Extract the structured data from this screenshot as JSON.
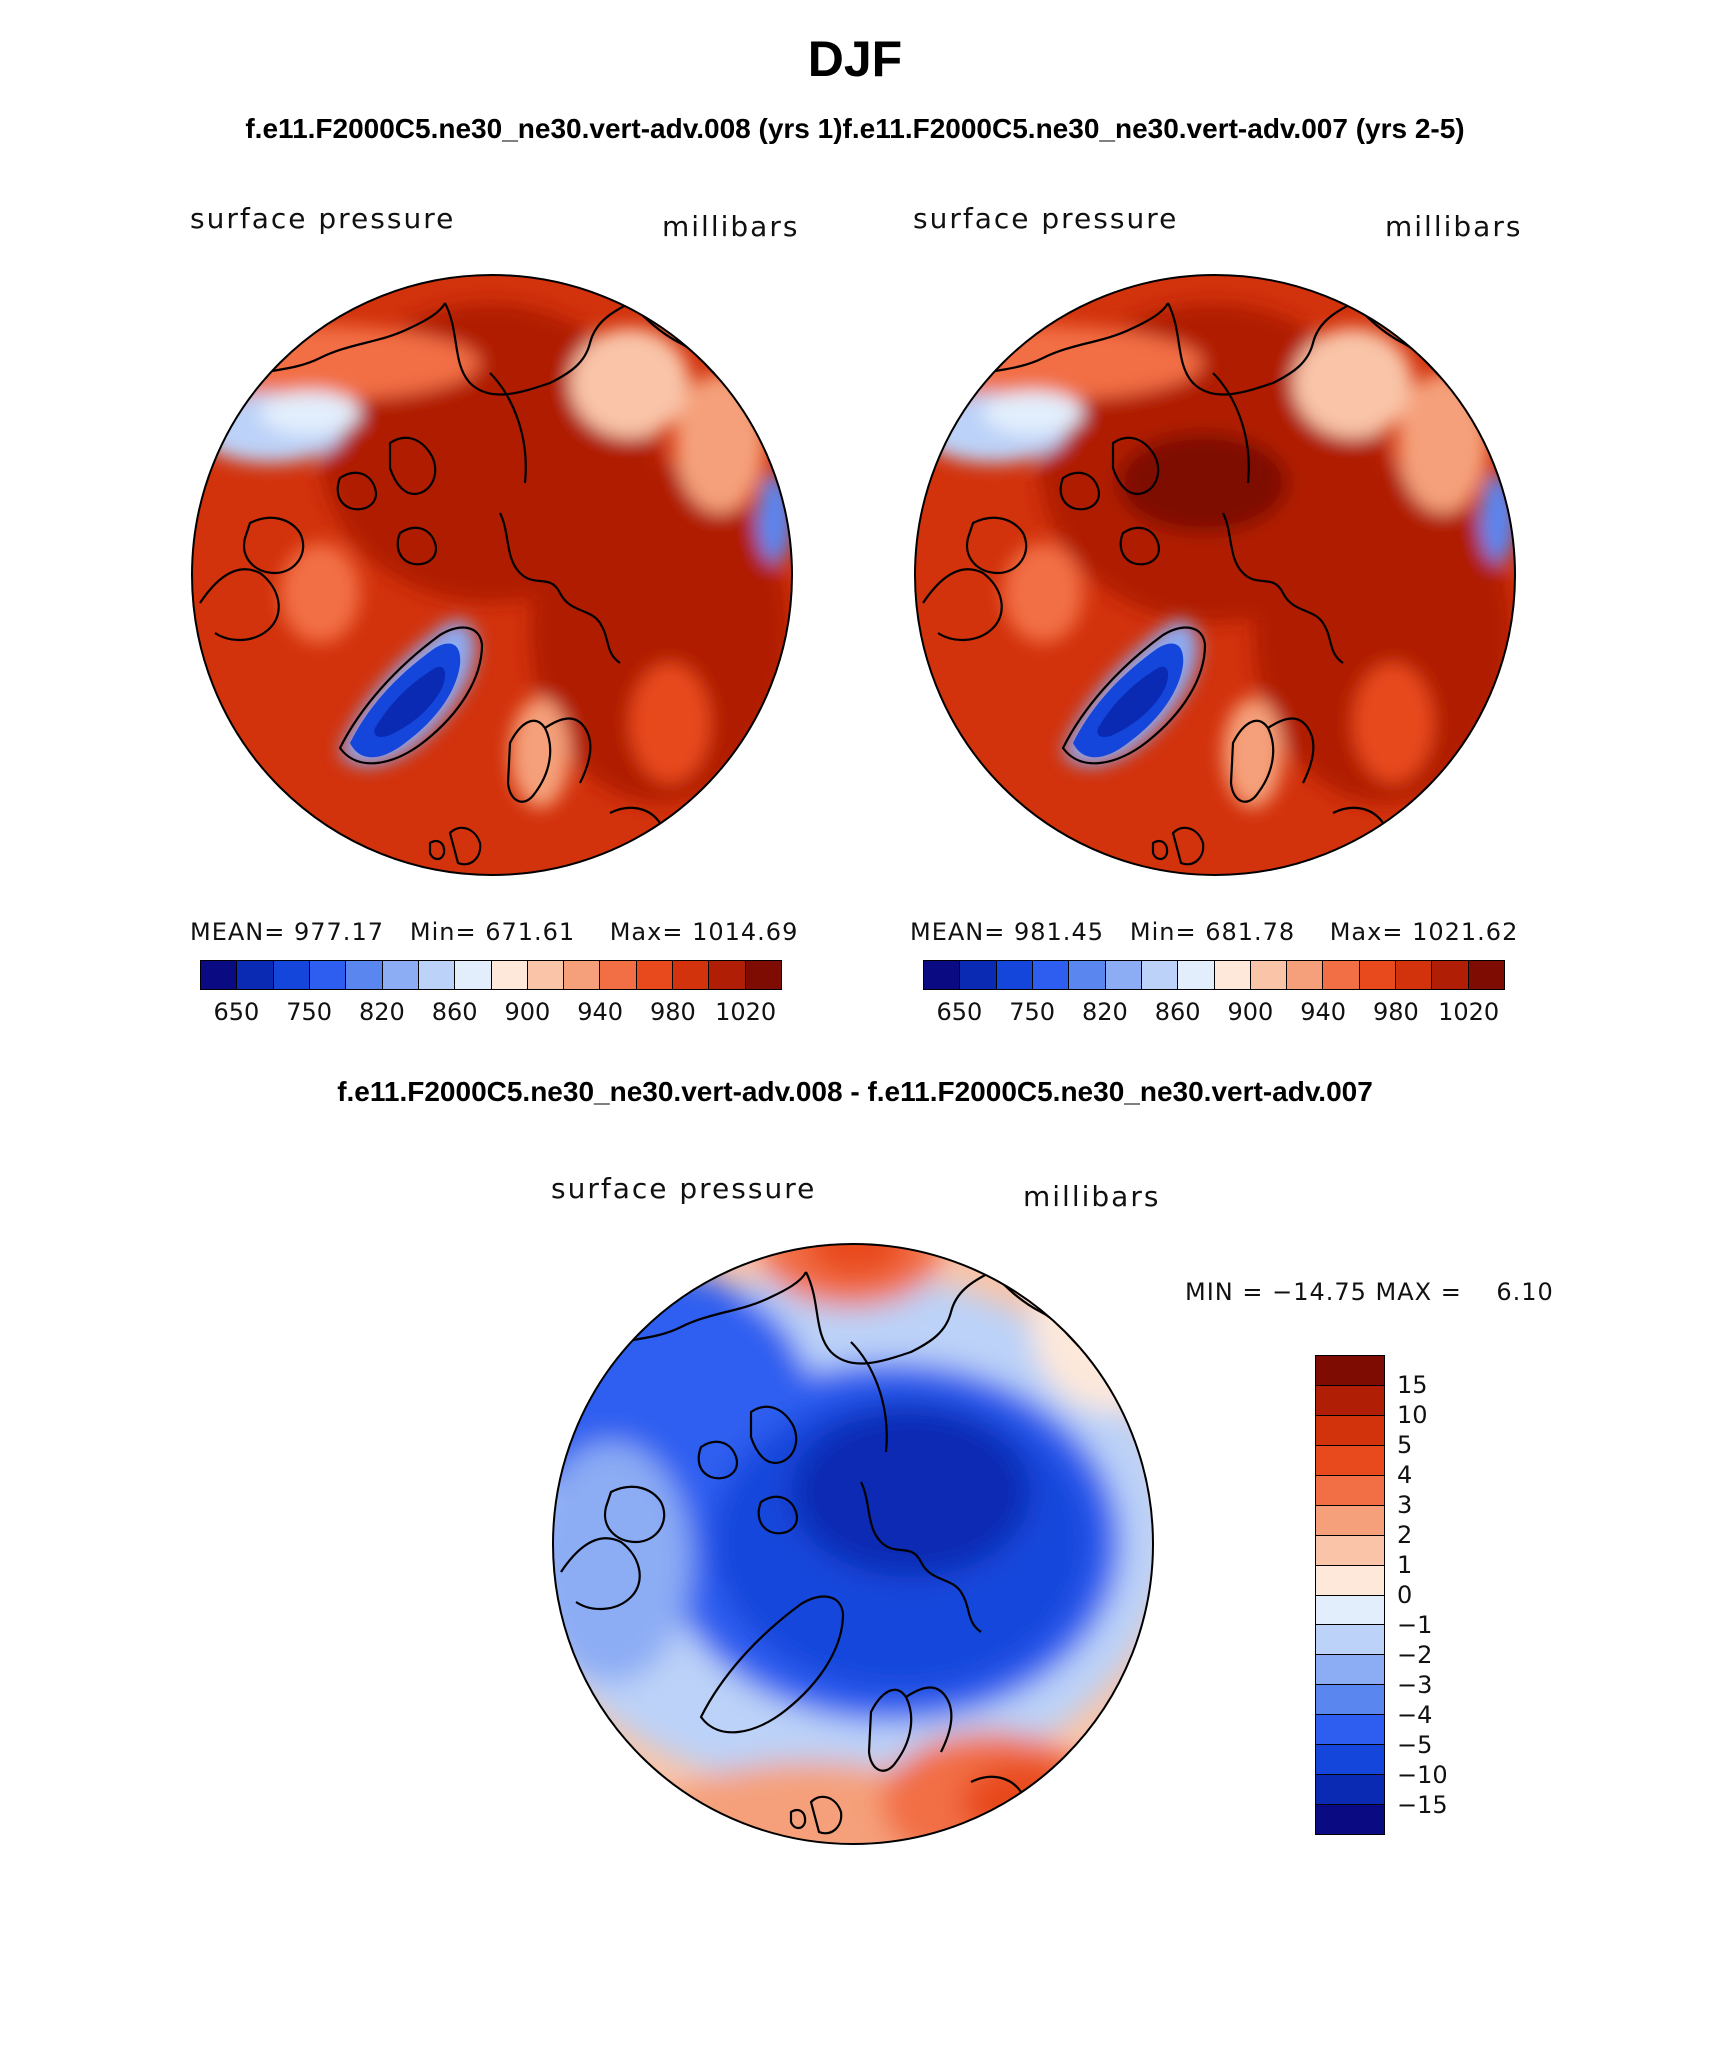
{
  "figure": {
    "title": "DJF",
    "subtitle": "f.e11.F2000C5.ne30_ne30.vert-adv.008 (yrs 1)f.e11.F2000C5.ne30_ne30.vert-adv.007 (yrs 2-5)",
    "diff_title": "f.e11.F2000C5.ne30_ne30.vert-adv.008 - f.e11.F2000C5.ne30_ne30.vert-adv.007"
  },
  "palettes": {
    "abs_colors": [
      "#0a0a82",
      "#0a2ab4",
      "#1446dc",
      "#2e5ef0",
      "#5a86f0",
      "#8cacf4",
      "#bcd2f8",
      "#e2eefc",
      "#fde8da",
      "#f9c4a8",
      "#f5a07a",
      "#f26e44",
      "#e84a1e",
      "#d2320c",
      "#b01e06",
      "#7e0c02"
    ],
    "diff_colors": [
      "#7e0c02",
      "#b01e06",
      "#d2320c",
      "#e84a1e",
      "#f26e44",
      "#f5a07a",
      "#f9c4a8",
      "#fde8da",
      "#e2eefc",
      "#bcd2f8",
      "#8cacf4",
      "#5a86f0",
      "#2e5ef0",
      "#1446dc",
      "#0a2ab4",
      "#0a0a82"
    ]
  },
  "chart_data": [
    {
      "type": "heatmap",
      "projection": "north polar stereographic",
      "panel": "top-left",
      "variable": "surface pressure",
      "units": "millibars",
      "stats": {
        "mean_label": "MEAN=",
        "mean": "977.17",
        "min_label": "Min=",
        "min": "671.61",
        "max_label": "Max=",
        "max": "1014.69"
      },
      "colorbar_ticks": [
        "650",
        "750",
        "820",
        "860",
        "900",
        "940",
        "980",
        "1020"
      ],
      "levels": 16
    },
    {
      "type": "heatmap",
      "projection": "north polar stereographic",
      "panel": "top-right",
      "variable": "surface pressure",
      "units": "millibars",
      "stats": {
        "mean_label": "MEAN=",
        "mean": "981.45",
        "min_label": "Min=",
        "min": "681.78",
        "max_label": "Max=",
        "max": "1021.62"
      },
      "colorbar_ticks": [
        "650",
        "750",
        "820",
        "860",
        "900",
        "940",
        "980",
        "1020"
      ],
      "levels": 16
    },
    {
      "type": "heatmap",
      "projection": "north polar stereographic",
      "panel": "bottom",
      "variable": "surface pressure",
      "units": "millibars",
      "stats_text": "MIN = −14.75 MAX =    6.10",
      "min": -14.75,
      "max": 6.1,
      "colorbar_ticks": [
        "15",
        "10",
        "5",
        "4",
        "3",
        "2",
        "1",
        "0",
        "−1",
        "−2",
        "−3",
        "−4",
        "−5",
        "−10",
        "−15"
      ],
      "levels": 16
    }
  ]
}
